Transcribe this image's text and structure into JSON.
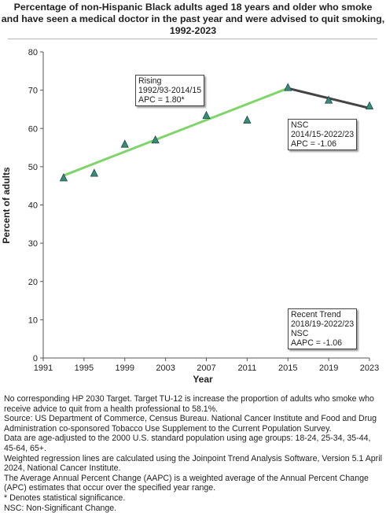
{
  "title_lines": [
    "Percentage of non-Hispanic Black  adults aged 18 years and older who smoke",
    "and have seen a medical doctor in the past year and were advised to quit smoking,",
    "1992-2023"
  ],
  "chart_data": {
    "type": "scatter",
    "xlabel": "Year",
    "ylabel": "Percent of adults",
    "xlim": [
      1991,
      2023
    ],
    "ylim": [
      0,
      80
    ],
    "xticks": [
      1991,
      1995,
      1999,
      2003,
      2007,
      2011,
      2015,
      2019,
      2023
    ],
    "yticks": [
      0,
      10,
      20,
      30,
      40,
      50,
      60,
      70,
      80
    ],
    "grid": false,
    "points": {
      "x": [
        1993,
        1996,
        1999,
        2002,
        2007,
        2011,
        2015,
        2019,
        2023
      ],
      "y": [
        47.1,
        48.3,
        55.9,
        57.0,
        63.4,
        62.2,
        70.7,
        67.4,
        65.9
      ]
    },
    "trend_segments": [
      {
        "x": [
          1993,
          2015
        ],
        "y": [
          47.7,
          70.5
        ],
        "color": "#7fd46a",
        "label": "Rising"
      },
      {
        "x": [
          2015,
          2023
        ],
        "y": [
          70.5,
          65.3
        ],
        "color": "#444444",
        "label": "NSC"
      }
    ],
    "marker_color": "#3a8a7a"
  },
  "annotations": [
    {
      "id": "rising",
      "lines": [
        "Rising",
        "1992/93-2014/15",
        "APC =  1.80*"
      ]
    },
    {
      "id": "nsc",
      "lines": [
        "NSC",
        "2014/15-2022/23",
        "APC = -1.06"
      ]
    },
    {
      "id": "recent",
      "lines": [
        "Recent Trend",
        "2018/19-2022/23",
        "NSC",
        "AAPC = -1.06"
      ]
    }
  ],
  "footnotes": [
    "No corresponding HP 2030 Target. Target TU-12 is increase the proportion of adults who smoke who receive advice to quit from a health professional to 58.1%.",
    "Source: US Department of Commerce, Census Bureau. National Cancer Institute and Food and Drug Administration co-sponsored Tobacco Use Supplement to the Current Population Survey.",
    "Data are age-adjusted to the 2000 U.S. standard population using age groups: 18-24, 25-34, 35-44, 45-64, 65+.",
    "Weighted regression lines are calculated using the Joinpoint Trend Analysis Software, Version 5.1 April 2024, National Cancer Institute.",
    "The Average Annual Percent Change (AAPC) is a weighted average of the Annual Percent Change (APC) estimates that occur over the specified year range.",
    "* Denotes statistical significance.",
    "NSC: Non-Significant Change."
  ]
}
